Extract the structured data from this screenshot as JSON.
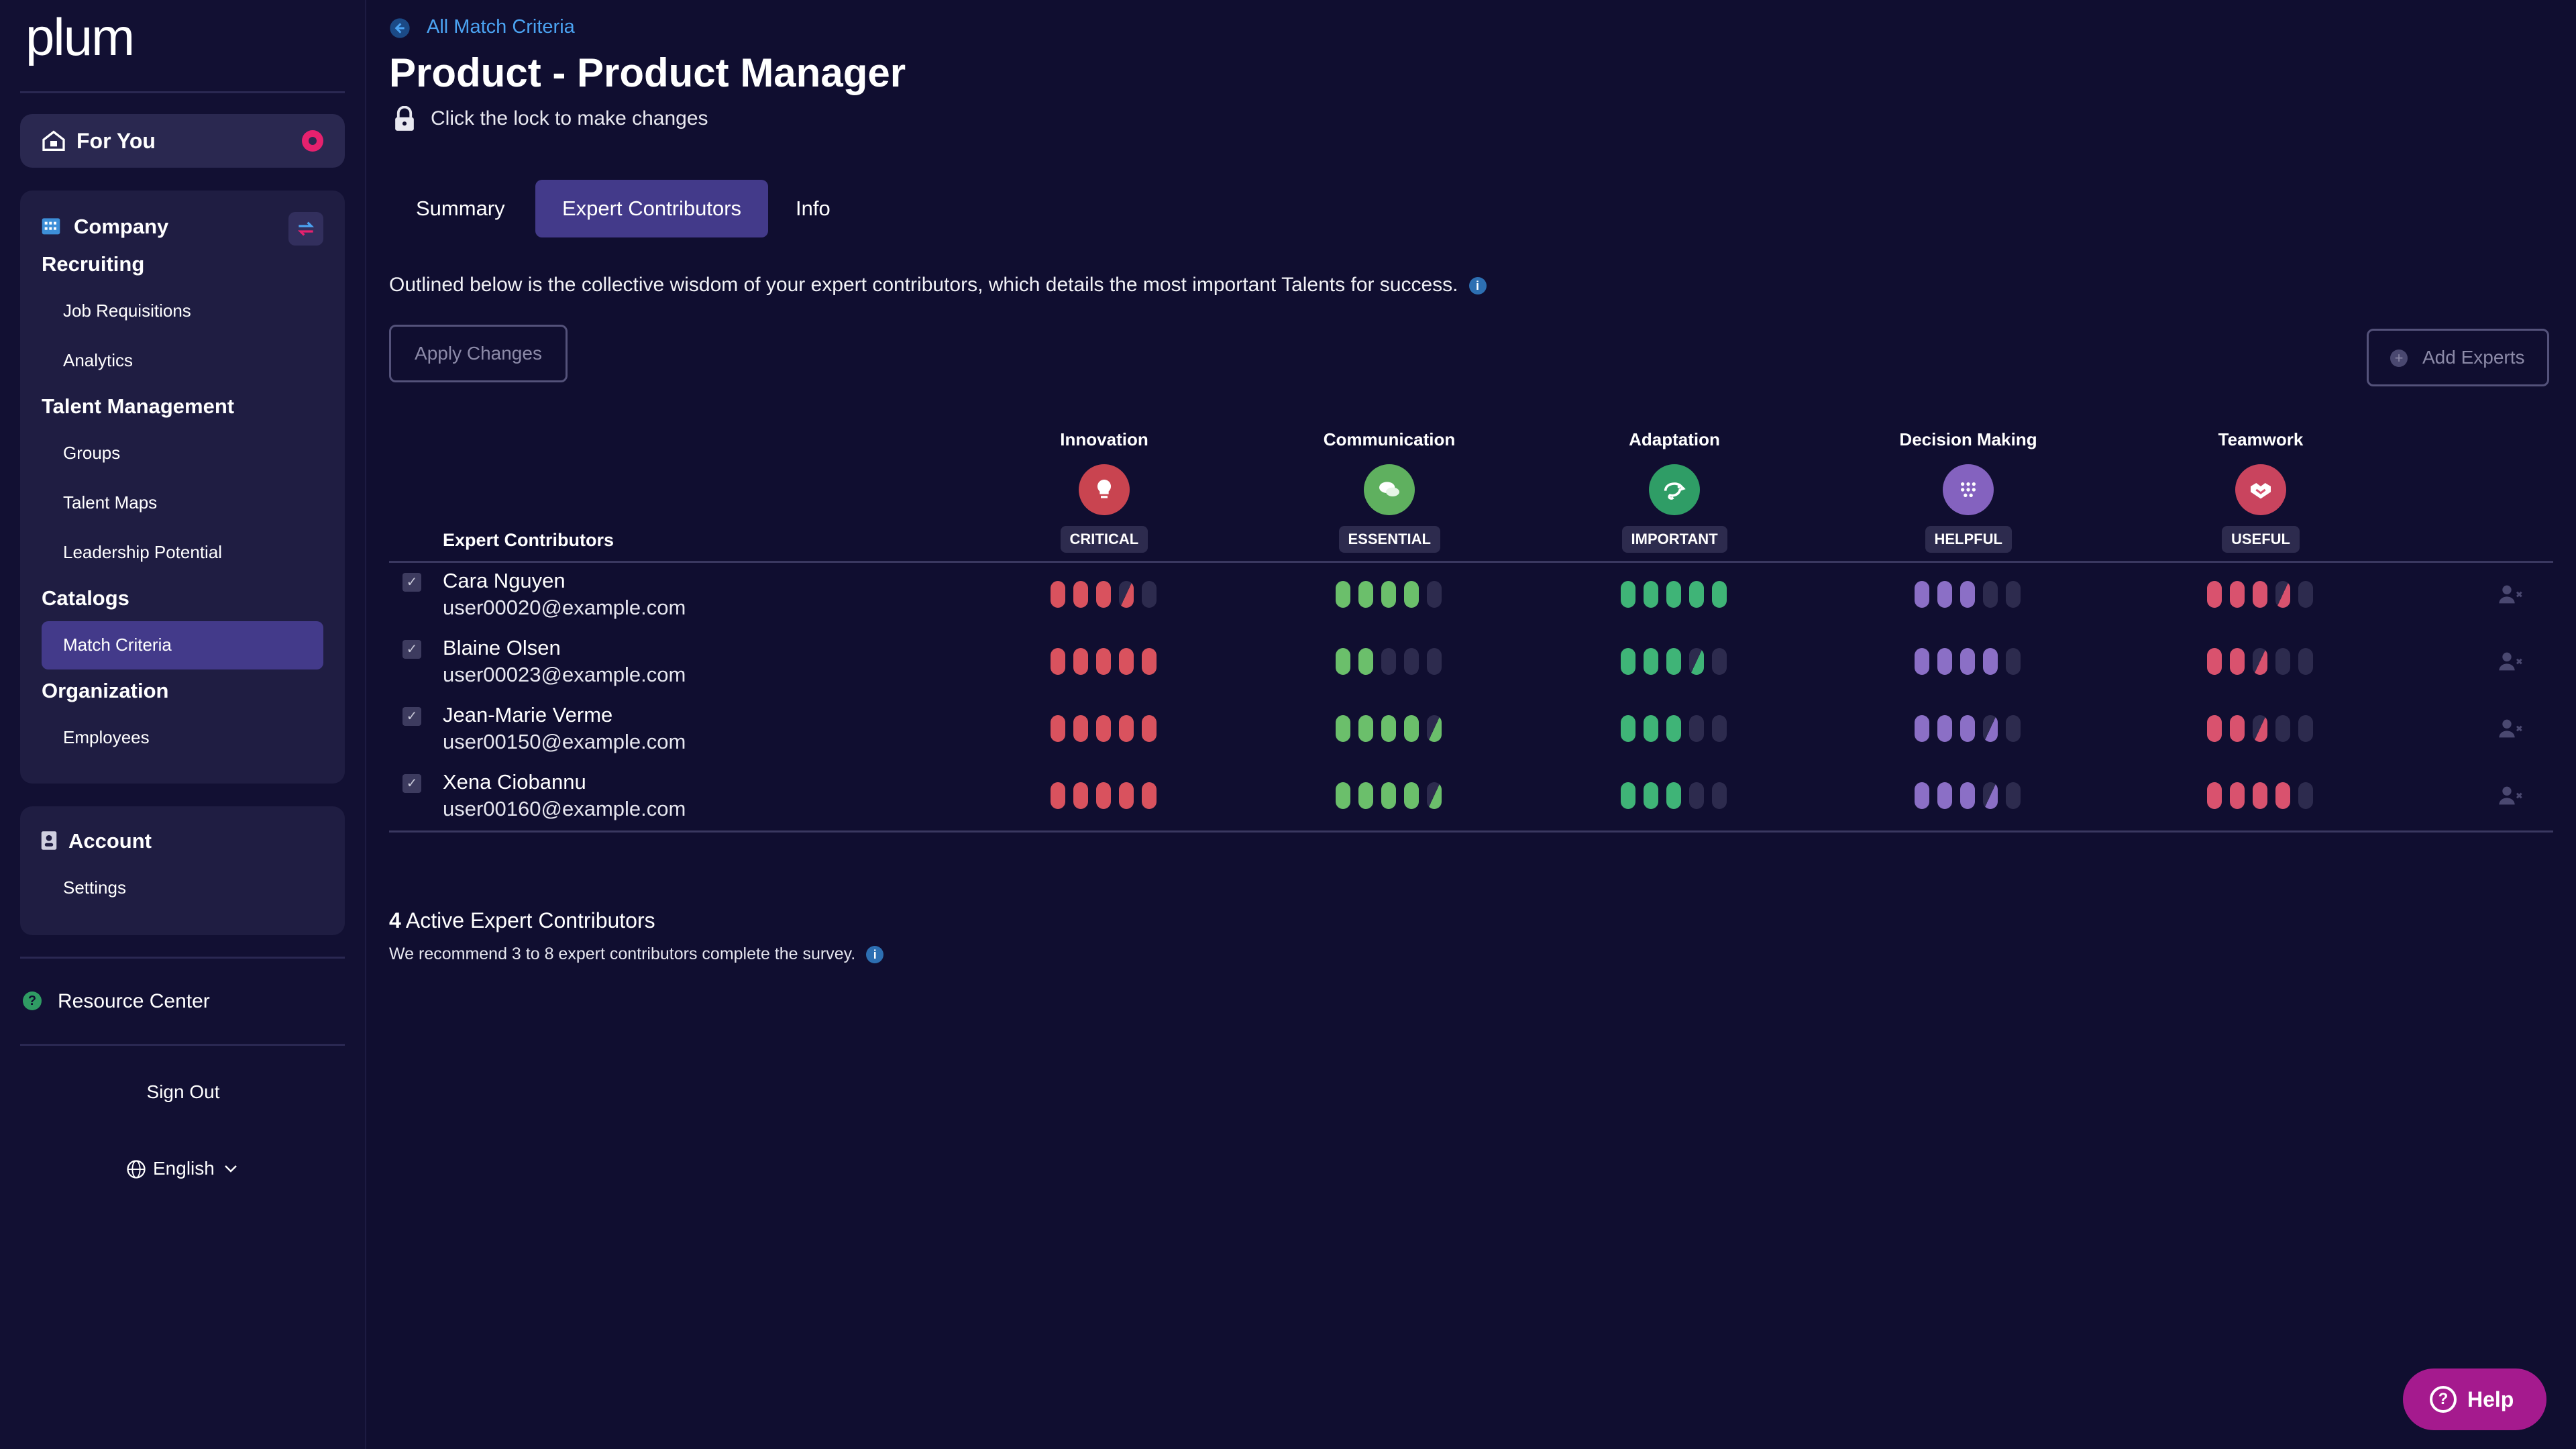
{
  "app": {
    "logo": "plum"
  },
  "sidebar": {
    "for_you": "For You",
    "company_title": "Company",
    "recruiting_title": "Recruiting",
    "recruiting_items": [
      "Job Requisitions",
      "Analytics"
    ],
    "talent_title": "Talent Management",
    "talent_items": [
      "Groups",
      "Talent Maps",
      "Leadership Potential"
    ],
    "catalogs_title": "Catalogs",
    "catalogs_items": [
      "Match Criteria"
    ],
    "org_title": "Organization",
    "org_items": [
      "Employees"
    ],
    "account_title": "Account",
    "account_items": [
      "Settings"
    ],
    "resource_center": "Resource Center",
    "sign_out": "Sign Out",
    "language": "English"
  },
  "header": {
    "back_link": "All Match Criteria",
    "title": "Product - Product Manager",
    "lock_hint": "Click the lock to make changes"
  },
  "tabs": [
    "Summary",
    "Expert Contributors",
    "Info"
  ],
  "active_tab": "Expert Contributors",
  "intro": "Outlined below is the collective wisdom of your expert contributors, which details the most important Talents for success.",
  "buttons": {
    "apply": "Apply Changes",
    "add_experts": "Add Experts",
    "help": "Help"
  },
  "table": {
    "expert_header": "Expert Contributors",
    "talents": [
      {
        "name": "Innovation",
        "badge": "CRITICAL",
        "icon": "lightbulb-icon",
        "color": "#d9525e"
      },
      {
        "name": "Communication",
        "badge": "ESSENTIAL",
        "icon": "speech-bubbles-icon",
        "color": "#6bbf6b"
      },
      {
        "name": "Adaptation",
        "badge": "IMPORTANT",
        "icon": "chameleon-icon",
        "color": "#3fb477"
      },
      {
        "name": "Decision Making",
        "badge": "HELPFUL",
        "icon": "dots-grid-icon",
        "color": "#8b6fc6"
      },
      {
        "name": "Teamwork",
        "badge": "USEFUL",
        "icon": "handshake-icon",
        "color": "#d9526e"
      }
    ],
    "rows": [
      {
        "name": "Cara Nguyen",
        "email": "user00020@example.com",
        "levels": [
          3.5,
          4,
          5,
          3,
          3.5
        ]
      },
      {
        "name": "Blaine Olsen",
        "email": "user00023@example.com",
        "levels": [
          5,
          2,
          3.5,
          4,
          2.5
        ]
      },
      {
        "name": "Jean-Marie Verme",
        "email": "user00150@example.com",
        "levels": [
          5,
          4.5,
          3,
          3.5,
          2.5
        ]
      },
      {
        "name": "Xena Ciobannu",
        "email": "user00160@example.com",
        "levels": [
          5,
          4.5,
          3,
          3.5,
          4
        ]
      }
    ]
  },
  "footer": {
    "active_count": "4",
    "active_label": "Active Expert Contributors",
    "recommend": "We recommend 3 to 8 expert contributors complete the survey."
  },
  "colors": {
    "accent": "#433a8a",
    "link": "#4ba3f2",
    "bg": "#100e30",
    "empty_bar": "#2d2b4e"
  }
}
